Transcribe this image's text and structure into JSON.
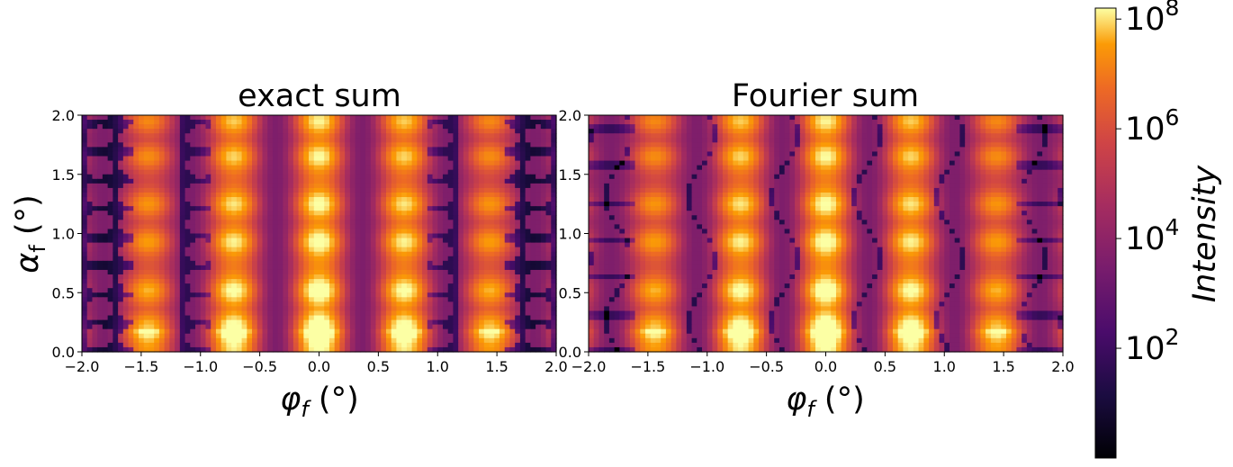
{
  "chart_data": [
    {
      "type": "heatmap",
      "title": "exact sum",
      "xlabel": "φ_f (°)",
      "ylabel": "α_f (°)",
      "xlim": [
        -2.0,
        2.0
      ],
      "ylim": [
        0.0,
        2.0
      ],
      "x_ticks": [
        "−2.0",
        "−1.5",
        "−1.0",
        "−0.5",
        "0.0",
        "0.5",
        "1.0",
        "1.5",
        "2.0"
      ],
      "y_ticks": [
        "0.0",
        "0.5",
        "1.0",
        "1.5",
        "2.0"
      ],
      "colormap": "inferno",
      "peak_columns_x": [
        -1.45,
        -0.72,
        0.0,
        0.72,
        1.45
      ],
      "peak_rows_y": [
        0.21,
        0.52,
        0.93,
        1.25,
        1.65,
        1.95
      ],
      "peak_log10_intensity_at_center": 7.6
    },
    {
      "type": "heatmap",
      "title": "Fourier sum",
      "xlabel": "φ_f (°)",
      "ylabel": "",
      "xlim": [
        -2.0,
        2.0
      ],
      "ylim": [
        0.0,
        2.0
      ],
      "x_ticks": [
        "−2.0",
        "−1.5",
        "−1.0",
        "−0.5",
        "0.0",
        "0.5",
        "1.0",
        "1.5",
        "2.0"
      ],
      "y_ticks": [
        "0.0",
        "0.5",
        "1.0",
        "1.5",
        "2.0"
      ],
      "colormap": "inferno",
      "peak_columns_x": [
        -1.45,
        -0.72,
        0.0,
        0.72,
        1.45
      ],
      "peak_rows_y": [
        0.21,
        0.52,
        0.93,
        1.25,
        1.65,
        1.95
      ],
      "peak_log10_intensity_at_center": 7.6
    }
  ],
  "colorbar": {
    "label": "Intensity",
    "scale": "log",
    "range_log10": [
      0,
      8.2
    ],
    "ticks": [
      {
        "base": "10",
        "exp": "8",
        "log10": 8
      },
      {
        "base": "10",
        "exp": "6",
        "log10": 6
      },
      {
        "base": "10",
        "exp": "4",
        "log10": 4
      },
      {
        "base": "10",
        "exp": "2",
        "log10": 2
      }
    ]
  }
}
